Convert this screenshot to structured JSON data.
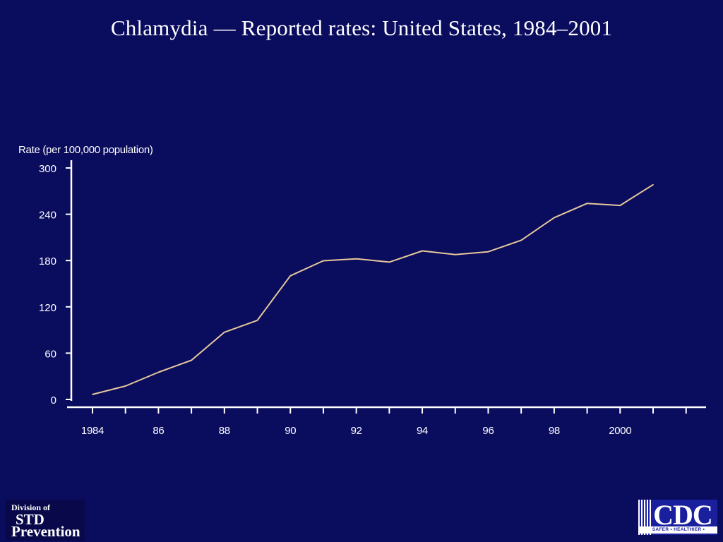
{
  "title": "Chlamydia — Reported rates: United States, 1984–2001",
  "chart_data": {
    "type": "line",
    "title": "Chlamydia — Reported rates: United States, 1984–2001",
    "ylabel": "Rate (per 100,000 population)",
    "xlabel": "",
    "ylim": [
      0,
      300
    ],
    "yticks": [
      0,
      60,
      120,
      180,
      240,
      300
    ],
    "xlim": [
      1984,
      2001
    ],
    "xtick_labels": [
      {
        "year": 1984,
        "label": "1984"
      },
      {
        "year": 1986,
        "label": "86"
      },
      {
        "year": 1988,
        "label": "88"
      },
      {
        "year": 1990,
        "label": "90"
      },
      {
        "year": 1992,
        "label": "92"
      },
      {
        "year": 1994,
        "label": "94"
      },
      {
        "year": 1996,
        "label": "96"
      },
      {
        "year": 1998,
        "label": "98"
      },
      {
        "year": 2000,
        "label": "2000"
      }
    ],
    "x": [
      1984,
      1985,
      1986,
      1987,
      1988,
      1989,
      1990,
      1991,
      1992,
      1993,
      1994,
      1995,
      1996,
      1997,
      1998,
      1999,
      2000,
      2001
    ],
    "series": [
      {
        "values": [
          6.5,
          17.4,
          35.2,
          50.8,
          87.1,
          102.5,
          160.2,
          179.7,
          182.3,
          178.0,
          192.5,
          187.8,
          191.4,
          206.3,
          235.6,
          254.1,
          251.4,
          278.3
        ],
        "color": "#e6c89a"
      }
    ],
    "grid": false,
    "legend": "none"
  },
  "logos": {
    "std": {
      "line1": "Division of",
      "line2": "STD",
      "line3": "Prevention"
    },
    "cdc": {
      "text": "CDC",
      "tagline": "SAFER • HEALTHIER • PEOPLE™"
    }
  }
}
